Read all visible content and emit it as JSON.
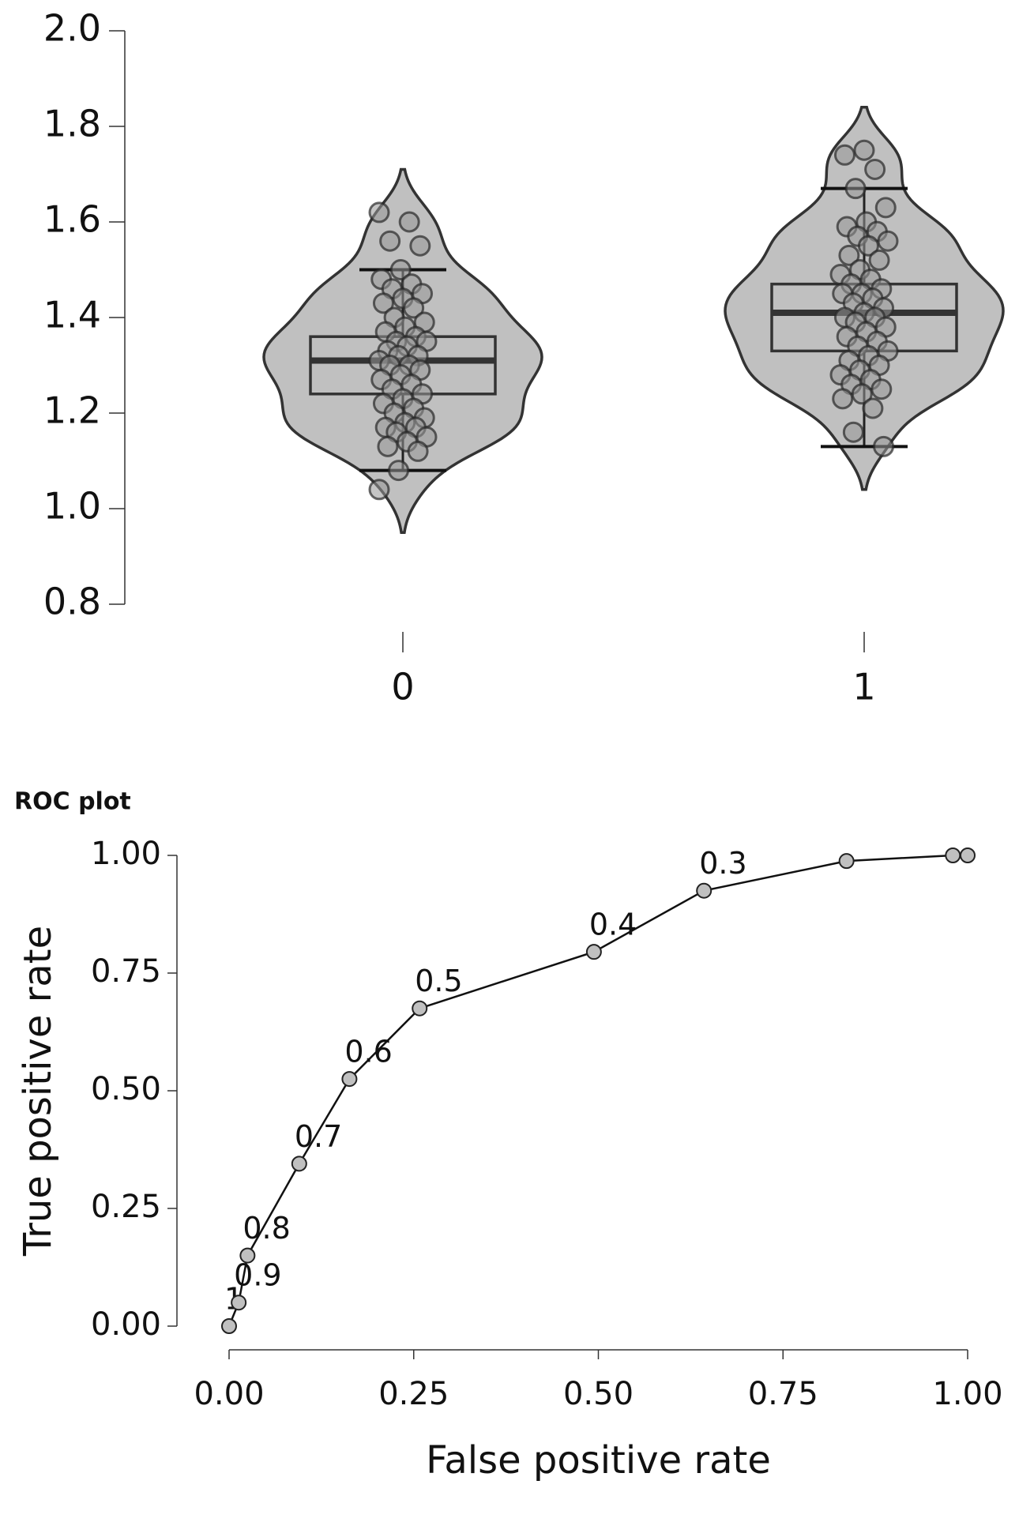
{
  "chart_data": [
    {
      "type": "violin",
      "categories": [
        "0",
        "1"
      ],
      "ylim": [
        0.8,
        2.0
      ],
      "yticks": [
        0.8,
        {
          "value": 1.0,
          "label": "1.0"
        },
        1.2,
        1.4,
        1.6,
        1.8,
        {
          "value": 2.0,
          "label": "2.0"
        }
      ],
      "color": "#c0c0c0",
      "series": [
        {
          "whisker_low": 1.08,
          "q1": 1.24,
          "median": 1.31,
          "q3": 1.36,
          "whisker_high": 1.5,
          "points": [
            1.62,
            1.6,
            1.56,
            1.55,
            1.5,
            1.48,
            1.47,
            1.46,
            1.45,
            1.44,
            1.43,
            1.42,
            1.4,
            1.39,
            1.38,
            1.37,
            1.36,
            1.35,
            1.35,
            1.34,
            1.33,
            1.32,
            1.32,
            1.31,
            1.3,
            1.3,
            1.29,
            1.28,
            1.27,
            1.26,
            1.25,
            1.24,
            1.23,
            1.22,
            1.21,
            1.2,
            1.19,
            1.18,
            1.17,
            1.17,
            1.16,
            1.15,
            1.14,
            1.13,
            1.12,
            1.08,
            1.04
          ]
        },
        {
          "whisker_low": 1.13,
          "q1": 1.33,
          "median": 1.41,
          "q3": 1.47,
          "whisker_high": 1.67,
          "points": [
            1.75,
            1.74,
            1.71,
            1.67,
            1.63,
            1.6,
            1.59,
            1.58,
            1.57,
            1.56,
            1.55,
            1.53,
            1.52,
            1.5,
            1.49,
            1.48,
            1.47,
            1.46,
            1.45,
            1.45,
            1.44,
            1.43,
            1.42,
            1.41,
            1.4,
            1.4,
            1.39,
            1.38,
            1.37,
            1.36,
            1.35,
            1.34,
            1.33,
            1.32,
            1.31,
            1.3,
            1.29,
            1.28,
            1.27,
            1.26,
            1.25,
            1.24,
            1.23,
            1.21,
            1.16,
            1.13
          ]
        }
      ]
    },
    {
      "type": "line",
      "title": "ROC plot",
      "x_label": "False positive rate",
      "y_label": "True positive rate",
      "xlim": [
        0,
        1
      ],
      "ylim": [
        0,
        1
      ],
      "xticks": [
        {
          "value": 0,
          "label": "0.00"
        },
        {
          "value": 0.25,
          "label": "0.25"
        },
        {
          "value": 0.5,
          "label": "0.50"
        },
        {
          "value": 0.75,
          "label": "0.75"
        },
        {
          "value": 1,
          "label": "1.00"
        }
      ],
      "yticks": [
        {
          "value": 0,
          "label": "0.00"
        },
        {
          "value": 0.25,
          "label": "0.25"
        },
        {
          "value": 0.5,
          "label": "0.50"
        },
        {
          "value": 0.75,
          "label": "0.75"
        },
        {
          "value": 1,
          "label": "1.00"
        }
      ],
      "color": "#c0c0c0",
      "x": [
        0,
        0.013,
        0.025,
        0.095,
        0.163,
        0.258,
        0.494,
        0.643,
        0.836,
        0.98,
        1.0
      ],
      "values": [
        0,
        0.05,
        0.15,
        0.345,
        0.525,
        0.675,
        0.795,
        0.925,
        0.988,
        1.0,
        1.0
      ],
      "point_labels": [
        "1",
        "0.9",
        "0.8",
        "0.7",
        "0.6",
        "0.5",
        "0.4",
        "0.3",
        null,
        null,
        null
      ]
    }
  ]
}
